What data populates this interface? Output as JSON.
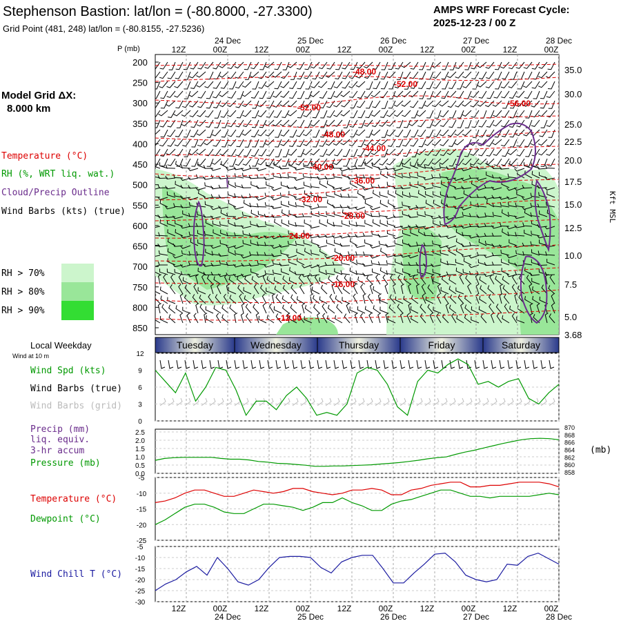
{
  "header": {
    "title": "Stephenson Bastion:  lat/lon = (-80.8000, -27.3300)",
    "subtitle": "Grid Point (481, 248) lat/lon = (-80.8155, -27.5236)",
    "cycle_label": "AMPS WRF Forecast Cycle:",
    "cycle_value": "2025-12-23 / 00  Z"
  },
  "left_panel": {
    "model_grid_label": "Model Grid ΔX:",
    "model_grid_value": "8.000 km",
    "temperature_label": "Temperature (°C)",
    "rh_label": "RH (%, WRT liq. wat.)",
    "cloud_label": "Cloud/Precip Outline",
    "wind_label": "Wind Barbs (kts) (true)",
    "rh70": "RH > 70%",
    "rh80": "RH > 80%",
    "rh90": "RH > 90%",
    "local_weekday": "Local Weekday",
    "wind_at_10m": "Wind at 10 m",
    "wind_spd_label": "Wind Spd (kts)",
    "wind_barbs_true": "Wind Barbs (true)",
    "wind_barbs_grid": "Wind Barbs (grid)",
    "precip_label": "Precip (mm)",
    "precip_sub1": "liq. equiv.",
    "precip_sub2": "3-hr accum",
    "pressure_label": "Pressure (mb)",
    "temp_label2": "Temperature (°C)",
    "dewpoint_label": "Dewpoint (°C)",
    "windchill_label": "Wind Chill T (°C)"
  },
  "colors": {
    "temp": "#dd0000",
    "rh": "#009900",
    "cloud": "#6a2c8c",
    "rh70": "#ccf5cc",
    "rh80": "#99e699",
    "rh90": "#33dd33",
    "windchill": "#1a1aa0",
    "grey": "#bbbbbb"
  },
  "chart_data": [
    {
      "type": "time-height cross-section",
      "name": "upper",
      "x_time_labels": [
        "12Z",
        "00Z",
        "12Z",
        "00Z",
        "12Z",
        "00Z",
        "12Z",
        "00Z",
        "12Z",
        "00Z"
      ],
      "x_date_labels": [
        "24 Dec",
        "25 Dec",
        "26 Dec",
        "27 Dec",
        "28 Dec"
      ],
      "y_axis_label": "P (mb)",
      "pressure_levels": [
        200,
        250,
        300,
        350,
        400,
        450,
        500,
        550,
        600,
        650,
        700,
        750,
        800,
        850
      ],
      "right_axis_label": "Kft MSL",
      "kft_ticks": [
        "35.0",
        "30.0",
        "25.0",
        "22.5",
        "20.0",
        "17.5",
        "15.0",
        "12.5",
        "10.0",
        "7.5",
        "5.0",
        "3.68"
      ],
      "contour_labels": [
        "-48.00",
        "-52.00",
        "-52.00",
        "-56.00",
        "-48.00",
        "-44.00",
        "-40.00",
        "-36.00",
        "-32.00",
        "-28.00",
        "-24.00",
        "-20.00",
        "-16.00",
        "-12.00"
      ],
      "weekdays": [
        "Tuesday",
        "Wednesday",
        "Thursday",
        "Friday",
        "Saturday"
      ]
    },
    {
      "type": "line",
      "name": "wind_speed",
      "ylabel": "Wind Spd (kts)",
      "ylim": [
        0,
        12
      ],
      "y_ticks": [
        "12",
        "9",
        "6",
        "3",
        "0"
      ],
      "values": [
        9,
        7,
        5,
        8.5,
        3.5,
        6,
        9.5,
        9,
        5.5,
        1,
        3.5,
        3.5,
        2,
        4.5,
        6,
        4,
        1,
        1.5,
        1,
        3,
        8.5,
        9.5,
        9,
        6.5,
        2.5,
        1,
        7,
        9,
        8.5,
        10,
        11,
        10,
        6.5,
        7,
        6,
        7,
        7.5,
        4,
        3,
        5,
        6.5
      ]
    },
    {
      "type": "line",
      "name": "pressure",
      "ylabel": "Pressure (mb)",
      "ylim_mb": [
        858,
        870
      ],
      "precip_ticks": [
        "2.5",
        "2.0",
        "1.5",
        "1.0",
        "0.5",
        "0.0"
      ],
      "pressure_ticks": [
        "870",
        "868",
        "866",
        "864",
        "862",
        "860",
        "858"
      ],
      "unit_label": "(mb)",
      "values": [
        861.3,
        861.8,
        862.0,
        862.1,
        862.1,
        862.1,
        862.1,
        861.8,
        861.6,
        861.6,
        861.4,
        861.0,
        860.8,
        860.5,
        860.4,
        860.2,
        860.0,
        859.7,
        859.7,
        859.8,
        859.8,
        859.9,
        860.0,
        860.1,
        860.3,
        860.5,
        860.7,
        861.0,
        861.3,
        861.7,
        862.0,
        862.2,
        862.9,
        863.5,
        864.0,
        864.6,
        865.2,
        865.8,
        866.3,
        866.8,
        867.1,
        867.2,
        867.1,
        866.8
      ]
    },
    {
      "type": "line",
      "name": "temperature_dewpoint",
      "ylim": [
        -25,
        -5
      ],
      "y_ticks": [
        "-5",
        "-10",
        "-15",
        "-20",
        "-25"
      ],
      "series": [
        {
          "name": "Temperature",
          "values": [
            -13,
            -12.5,
            -11.5,
            -10,
            -9,
            -9,
            -10,
            -11,
            -11,
            -10,
            -9,
            -9.5,
            -10,
            -9.5,
            -8.5,
            -8.5,
            -9.5,
            -10,
            -10.5,
            -10,
            -9,
            -9,
            -8.5,
            -9,
            -10.5,
            -10.5,
            -9,
            -8.5,
            -7.5,
            -7,
            -6.5,
            -6.5,
            -8,
            -8,
            -7.5,
            -7.5,
            -7,
            -6.5,
            -6.5,
            -6.5,
            -7,
            -8
          ]
        },
        {
          "name": "Dewpoint",
          "values": [
            -20,
            -18.5,
            -16.5,
            -14.5,
            -13.5,
            -13.5,
            -14.5,
            -16,
            -16.5,
            -16.5,
            -15,
            -13.5,
            -13.5,
            -14,
            -14.5,
            -15.5,
            -14.5,
            -13,
            -13,
            -11.5,
            -13,
            -14,
            -15.5,
            -15.5,
            -13.5,
            -12.5,
            -12,
            -11,
            -10,
            -9,
            -9,
            -10,
            -11,
            -11,
            -11.5,
            -11,
            -11,
            -11,
            -11,
            -10.5,
            -10,
            -10.5
          ]
        }
      ]
    },
    {
      "type": "line",
      "name": "wind_chill",
      "ylabel": "Wind Chill T (°C)",
      "ylim": [
        -30,
        -5
      ],
      "y_ticks": [
        "-5",
        "-10",
        "-15",
        "-20",
        "-25",
        "-30"
      ],
      "values": [
        -25,
        -22,
        -20,
        -16.5,
        -14,
        -18,
        -10,
        -15,
        -21,
        -22.5,
        -20,
        -14.5,
        -10,
        -9.5,
        -9.5,
        -10,
        -14.5,
        -17,
        -12,
        -10,
        -9,
        -9,
        -15,
        -21.5,
        -21.5,
        -17,
        -13,
        -8.5,
        -8,
        -12,
        -18,
        -20,
        -21,
        -20,
        -13,
        -13.5,
        -9.5,
        -8,
        -10.5,
        -13
      ]
    }
  ]
}
